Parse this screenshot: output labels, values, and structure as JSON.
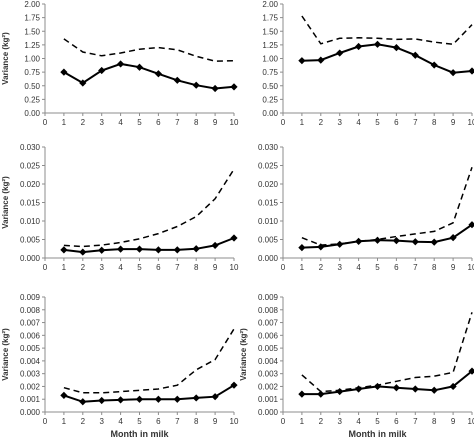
{
  "chart_data": [
    {
      "type": "line",
      "ylabel": "Variance (kg²)",
      "xlabel": "",
      "ylim": [
        0,
        2.0
      ],
      "yticks": [
        "0.00",
        "0.25",
        "0.50",
        "0.75",
        "1.00",
        "1.25",
        "1.50",
        "1.75",
        "2.00"
      ],
      "xticks": [
        "0",
        "1",
        "2",
        "3",
        "4",
        "5",
        "6",
        "7",
        "8",
        "9",
        "10"
      ],
      "x": [
        1,
        2,
        3,
        4,
        5,
        6,
        7,
        8,
        9,
        10
      ],
      "series": [
        {
          "style": "dashed",
          "values": [
            1.36,
            1.12,
            1.05,
            1.1,
            1.17,
            1.2,
            1.16,
            1.04,
            0.95,
            0.96
          ]
        },
        {
          "style": "solid-diamond",
          "values": [
            0.75,
            0.55,
            0.78,
            0.9,
            0.84,
            0.72,
            0.6,
            0.51,
            0.45,
            0.48
          ]
        }
      ]
    },
    {
      "type": "line",
      "ylabel": "",
      "xlabel": "",
      "ylim": [
        0,
        2.0
      ],
      "yticks": [
        "0.00",
        "0.25",
        "0.50",
        "0.75",
        "1.00",
        "1.25",
        "1.50",
        "1.75",
        "2.00"
      ],
      "xticks": [
        "0",
        "1",
        "2",
        "3",
        "4",
        "5",
        "6",
        "7",
        "8",
        "9",
        "10"
      ],
      "x": [
        1,
        2,
        3,
        4,
        5,
        6,
        7,
        8,
        9,
        10
      ],
      "series": [
        {
          "style": "dashed",
          "values": [
            1.78,
            1.27,
            1.37,
            1.38,
            1.37,
            1.35,
            1.36,
            1.3,
            1.26,
            1.62
          ]
        },
        {
          "style": "solid-diamond",
          "values": [
            0.96,
            0.97,
            1.1,
            1.22,
            1.26,
            1.2,
            1.06,
            0.88,
            0.74,
            0.77
          ]
        }
      ]
    },
    {
      "type": "line",
      "ylabel": "Variance (kg²)",
      "xlabel": "",
      "ylim": [
        0,
        0.03
      ],
      "yticks": [
        "0.000",
        "0.005",
        "0.010",
        "0.015",
        "0.020",
        "0.025",
        "0.030"
      ],
      "xticks": [
        "0",
        "1",
        "2",
        "3",
        "4",
        "5",
        "6",
        "7",
        "8",
        "9",
        "10"
      ],
      "x": [
        1,
        2,
        3,
        4,
        5,
        6,
        7,
        8,
        9,
        10
      ],
      "series": [
        {
          "style": "dashed",
          "values": [
            0.0034,
            0.0031,
            0.0035,
            0.0042,
            0.0052,
            0.0066,
            0.0085,
            0.0112,
            0.016,
            0.024
          ]
        },
        {
          "style": "solid-diamond",
          "values": [
            0.0022,
            0.0016,
            0.0021,
            0.0024,
            0.0024,
            0.0022,
            0.0022,
            0.0025,
            0.0034,
            0.0054
          ]
        }
      ]
    },
    {
      "type": "line",
      "ylabel": "",
      "xlabel": "",
      "ylim": [
        0,
        0.03
      ],
      "yticks": [
        "0.000",
        "0.005",
        "0.010",
        "0.015",
        "0.020",
        "0.025",
        "0.030"
      ],
      "xticks": [
        "0",
        "1",
        "2",
        "3",
        "4",
        "5",
        "6",
        "7",
        "8",
        "9",
        "10"
      ],
      "x": [
        1,
        2,
        3,
        4,
        5,
        6,
        7,
        8,
        9,
        10
      ],
      "series": [
        {
          "style": "dashed",
          "values": [
            0.0055,
            0.0035,
            0.0038,
            0.0045,
            0.005,
            0.0058,
            0.0065,
            0.0072,
            0.0095,
            0.0245
          ]
        },
        {
          "style": "solid-diamond",
          "values": [
            0.0028,
            0.003,
            0.0037,
            0.0045,
            0.0048,
            0.0047,
            0.0044,
            0.0043,
            0.0055,
            0.009
          ]
        }
      ]
    },
    {
      "type": "line",
      "ylabel": "Variance (kg²)",
      "xlabel": "Month in milk",
      "ylim": [
        0,
        0.009
      ],
      "yticks": [
        "0.000",
        "0.001",
        "0.002",
        "0.003",
        "0.004",
        "0.005",
        "0.006",
        "0.007",
        "0.008",
        "0.009"
      ],
      "xticks": [
        "0",
        "1",
        "2",
        "3",
        "4",
        "5",
        "6",
        "7",
        "8",
        "9",
        "10"
      ],
      "x": [
        1,
        2,
        3,
        4,
        5,
        6,
        7,
        8,
        9,
        10
      ],
      "series": [
        {
          "style": "dashed",
          "values": [
            0.0019,
            0.0015,
            0.0015,
            0.0016,
            0.0017,
            0.0018,
            0.0021,
            0.0033,
            0.0041,
            0.0065
          ]
        },
        {
          "style": "solid-diamond",
          "values": [
            0.0013,
            0.0008,
            0.0009,
            0.00095,
            0.001,
            0.001,
            0.001,
            0.0011,
            0.0012,
            0.0021
          ]
        }
      ]
    },
    {
      "type": "line",
      "ylabel": "Variance (kg²)",
      "xlabel": "Month in milk",
      "ylim": [
        0,
        0.009
      ],
      "yticks": [
        "0.000",
        "0.001",
        "0.002",
        "0.003",
        "0.004",
        "0.005",
        "0.006",
        "0.007",
        "0.008",
        "0.009"
      ],
      "xticks": [
        "0",
        "1",
        "2",
        "3",
        "4",
        "5",
        "6",
        "7",
        "8",
        "9",
        "10"
      ],
      "x": [
        1,
        2,
        3,
        4,
        5,
        6,
        7,
        8,
        9,
        10
      ],
      "series": [
        {
          "style": "dashed",
          "values": [
            0.0029,
            0.0016,
            0.0017,
            0.0019,
            0.0021,
            0.0024,
            0.0027,
            0.0028,
            0.0031,
            0.0078
          ]
        },
        {
          "style": "solid-diamond",
          "values": [
            0.0014,
            0.0014,
            0.0016,
            0.0018,
            0.002,
            0.0019,
            0.0018,
            0.0017,
            0.002,
            0.0032
          ]
        }
      ]
    }
  ]
}
